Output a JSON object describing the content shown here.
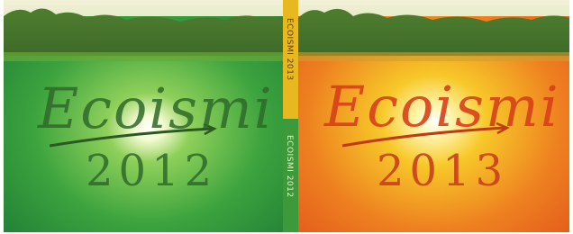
{
  "covers": [
    {
      "title": "Ecoismi",
      "year": "2012"
    },
    {
      "title": "Ecoismi",
      "year": "2013"
    }
  ],
  "spines": [
    "ECOISMI 2013",
    "ECOISMI 2012"
  ]
}
